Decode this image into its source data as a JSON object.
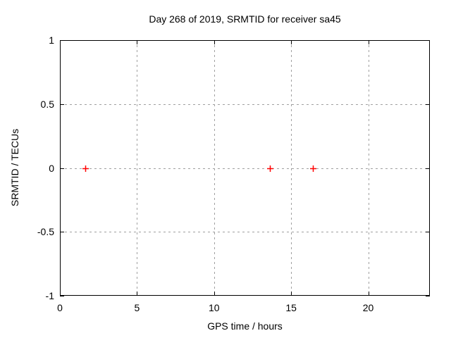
{
  "chart_data": {
    "type": "scatter",
    "title": "Day 268 of 2019, SRMTID for receiver sa45",
    "xlabel": "GPS time / hours",
    "ylabel": "SRMTID / TECUs",
    "xlim": [
      0,
      24
    ],
    "ylim": [
      -1,
      1
    ],
    "xticks": [
      0,
      5,
      10,
      15,
      20
    ],
    "yticks": [
      1,
      0.5,
      0,
      -0.5,
      -1
    ],
    "grid": true,
    "legend": "none",
    "marker": "plus",
    "series": [
      {
        "name": "SRMTID",
        "points": [
          [
            1.65,
            0
          ],
          [
            13.6,
            0
          ],
          [
            16.4,
            0
          ]
        ]
      }
    ],
    "colors": {
      "marker": "#ff0000",
      "axis": "#000000",
      "grid": "#a0a0a0",
      "text": "#000000",
      "background": "#ffffff"
    }
  }
}
